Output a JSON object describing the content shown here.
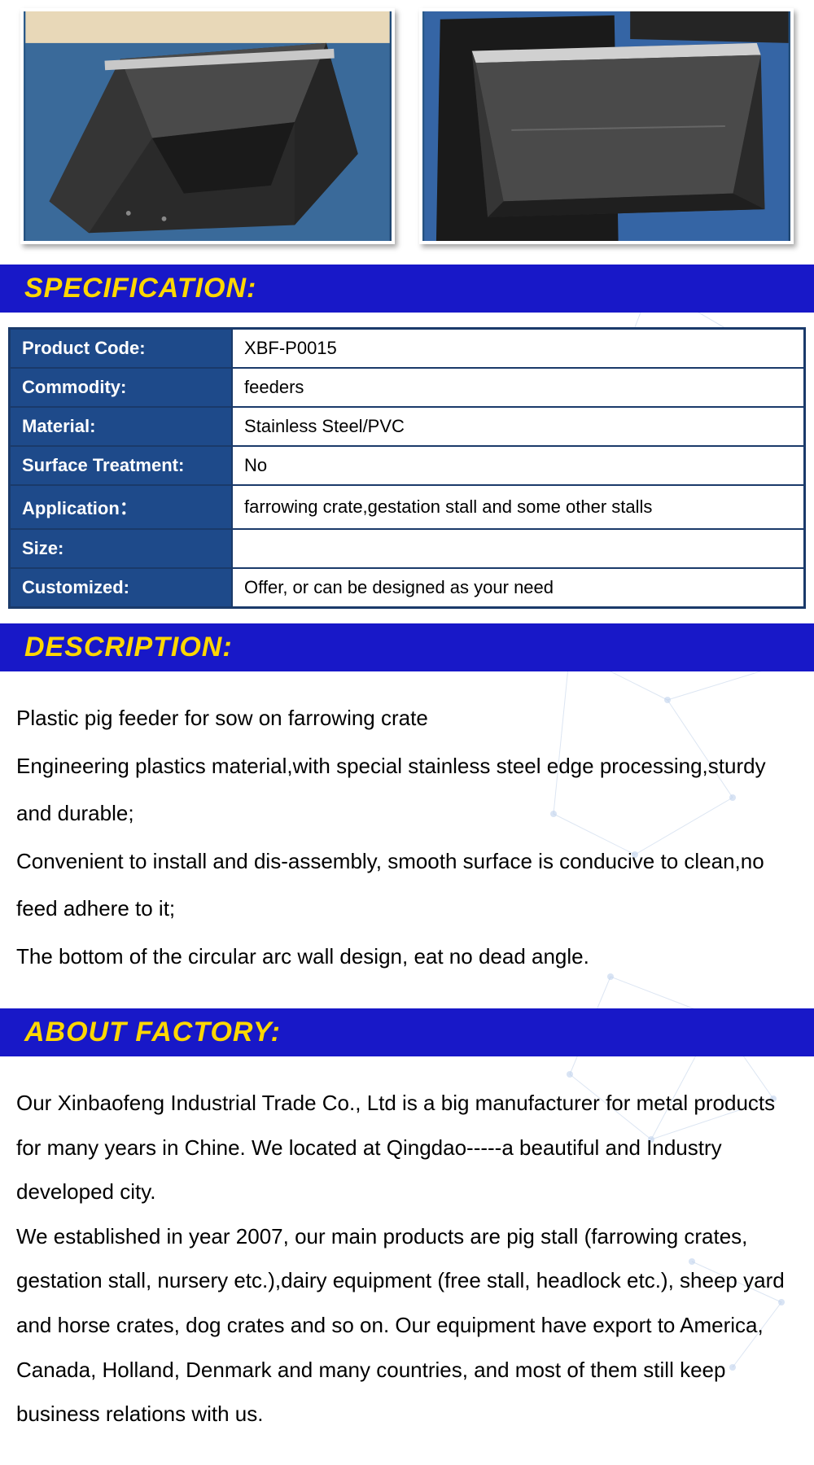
{
  "sections": {
    "specification": {
      "title": "SPECIFICATION:",
      "header_bg": "#1818c8",
      "header_color": "#ffd700",
      "table": {
        "border_color": "#1a3a6a",
        "label_bg": "#1e4a8a",
        "label_color": "#ffffff",
        "value_bg": "#ffffff",
        "rows": [
          {
            "label": "Product Code:",
            "value": "XBF-P0015"
          },
          {
            "label": "Commodity:",
            "value": "feeders"
          },
          {
            "label": "Material:",
            "value": "Stainless Steel/PVC"
          },
          {
            "label": "Surface Treatment:",
            "value": "No"
          },
          {
            "label": "Application：",
            "value": "farrowing crate,gestation stall and some other stalls"
          },
          {
            "label": "Size:",
            "value": ""
          },
          {
            "label": "Customized:",
            "value": "Offer, or can be designed as your need"
          }
        ]
      }
    },
    "description": {
      "title": "DESCRIPTION:",
      "lines": [
        "Plastic pig feeder for sow on farrowing crate",
        "Engineering plastics material,with special stainless steel edge processing,sturdy and durable;",
        "Convenient to install and dis-assembly, smooth surface is conducive to clean,no feed adhere to it;",
        "The bottom of the circular arc wall design, eat no dead angle."
      ]
    },
    "factory": {
      "title": "ABOUT FACTORY:",
      "paragraphs": [
        "Our Xinbaofeng Industrial Trade Co., Ltd is a big manufacturer for metal products for many years in Chine. We located at Qingdao-----a beautiful and Industry developed city.",
        "We established in year 2007, our main products are pig stall (farrowing crates, gestation stall, nursery etc.),dairy equipment (free stall, headlock etc.), sheep yard and horse crates, dog crates and so on. Our equipment have export to America, Canada, Holland, Denmark and many countries, and most of them still keep business relations with us."
      ]
    }
  },
  "images": {
    "count": 2,
    "bg_color": "#2a5a8a",
    "feeder_color_dark": "#2f2f2f",
    "feeder_color_light": "#5a5a5a",
    "edge_color": "#c8c8c8"
  },
  "decoration": {
    "network_line_color": "#5080c0",
    "network_node_color": "#6090d0"
  }
}
